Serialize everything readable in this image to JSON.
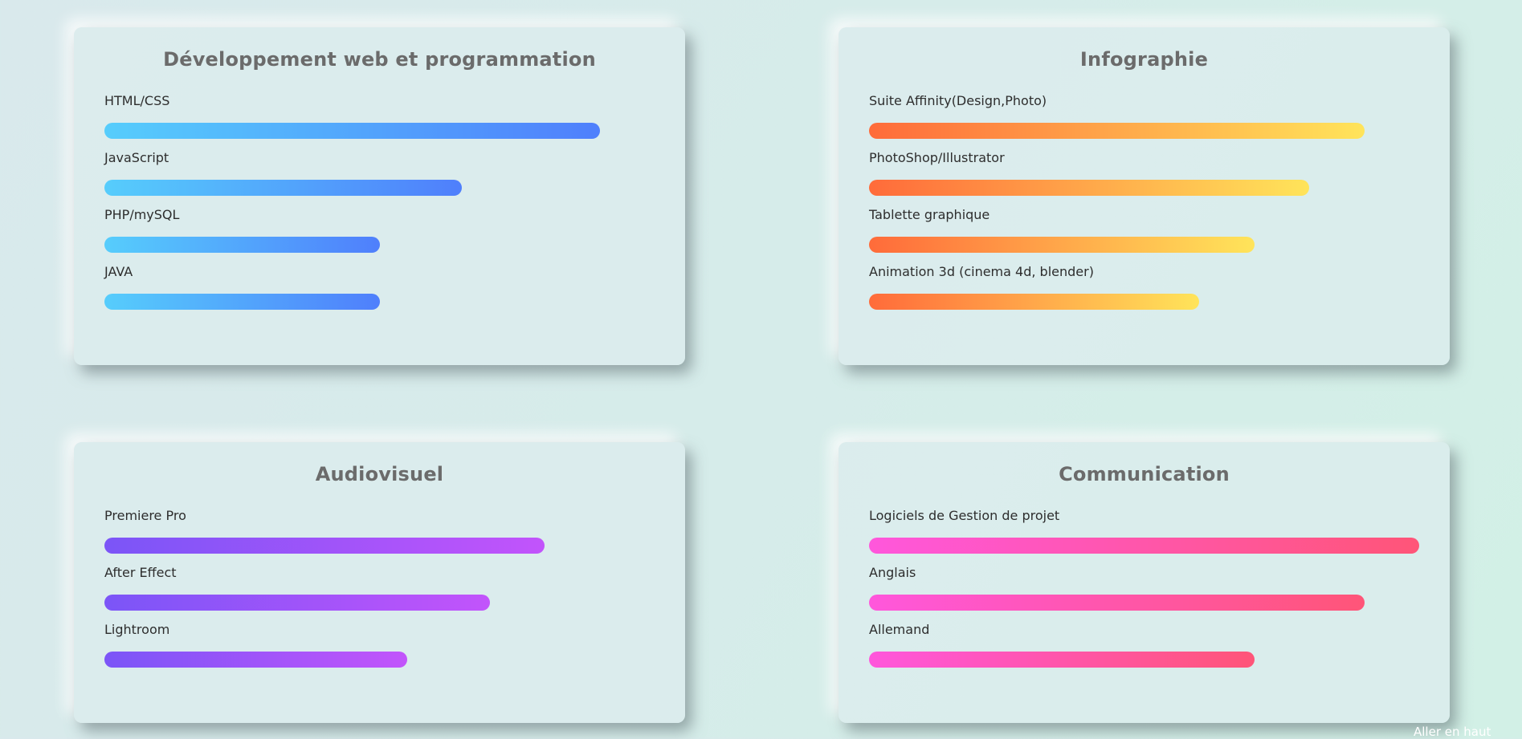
{
  "cards": {
    "dev": {
      "title": "Développement web et programmation",
      "accent": [
        "#56cdfc",
        "#4f7ffc"
      ],
      "skills": [
        {
          "label": "HTML/CSS",
          "level": 0.9
        },
        {
          "label": "JavaScript",
          "level": 0.65
        },
        {
          "label": "PHP/mySQL",
          "level": 0.5
        },
        {
          "label": "JAVA",
          "level": 0.5
        }
      ]
    },
    "info": {
      "title": "Infographie",
      "accent": [
        "#ff6b3a",
        "#ffe45a"
      ],
      "skills": [
        {
          "label": "Suite Affinity(Design,Photo)",
          "level": 0.9
        },
        {
          "label": "PhotoShop/Illustrator",
          "level": 0.8
        },
        {
          "label": "Tablette graphique",
          "level": 0.7
        },
        {
          "label": "Animation 3d (cinema 4d, blender)",
          "level": 0.6
        }
      ]
    },
    "av": {
      "title": "Audiovisuel",
      "accent": [
        "#7b55f7",
        "#c254fb"
      ],
      "skills": [
        {
          "label": "Premiere Pro",
          "level": 0.8
        },
        {
          "label": "After Effect",
          "level": 0.7
        },
        {
          "label": "Lightroom",
          "level": 0.55
        }
      ]
    },
    "com": {
      "title": "Communication",
      "accent": [
        "#ff57dc",
        "#ff5578"
      ],
      "skills": [
        {
          "label": "Logiciels de Gestion de projet",
          "level": 1.0
        },
        {
          "label": "Anglais",
          "level": 0.9
        },
        {
          "label": "Allemand",
          "level": 0.7
        }
      ]
    }
  },
  "footer": {
    "back_to_top": "Aller en haut"
  }
}
